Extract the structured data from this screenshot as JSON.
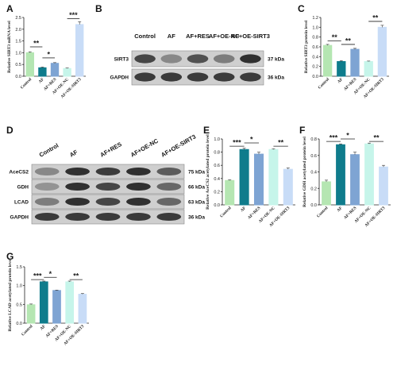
{
  "panel_labels": {
    "A": "A",
    "B": "B",
    "C": "C",
    "D": "D",
    "E": "E",
    "F": "F",
    "G": "G"
  },
  "blot_b": {
    "lanes": [
      "Control",
      "AF",
      "AF+RES",
      "AF+OE-NC",
      "AF+OE-SIRT3"
    ],
    "rows": [
      {
        "name": "SIRT3",
        "kda": "37 kDa",
        "intensity": [
          0.75,
          0.45,
          0.7,
          0.5,
          0.85
        ]
      },
      {
        "name": "GAPDH",
        "kda": "36 kDa",
        "intensity": [
          0.8,
          0.8,
          0.8,
          0.8,
          0.8
        ]
      }
    ]
  },
  "blot_d": {
    "lanes": [
      "Control",
      "AF",
      "AF+RES",
      "AF+OE-NC",
      "AF+OE-SIRT3"
    ],
    "rows": [
      {
        "name": "AceCS2",
        "kda": "75 kDa",
        "intensity": [
          0.45,
          0.85,
          0.8,
          0.85,
          0.65
        ]
      },
      {
        "name": "GDH",
        "kda": "66 kDa",
        "intensity": [
          0.4,
          0.85,
          0.75,
          0.85,
          0.6
        ]
      },
      {
        "name": "LCAD",
        "kda": "63 kDa",
        "intensity": [
          0.5,
          0.85,
          0.75,
          0.85,
          0.6
        ]
      },
      {
        "name": "GAPDH",
        "kda": "36 kDa",
        "intensity": [
          0.8,
          0.8,
          0.8,
          0.8,
          0.8
        ]
      }
    ]
  },
  "chart_data": [
    {
      "id": "A",
      "type": "bar",
      "categories": [
        "Control",
        "AF",
        "AF+RES",
        "AF+OE-NC",
        "AF+OE-SIRT3"
      ],
      "values": [
        1.0,
        0.36,
        0.55,
        0.33,
        2.2
      ],
      "errors": [
        0.04,
        0.03,
        0.03,
        0.02,
        0.12
      ],
      "colors": [
        "#b5e6b2",
        "#0f7c8c",
        "#7ea4d3",
        "#c6f5ea",
        "#c8dcf7"
      ],
      "ylabel": "Relative SIRT3 mRNA level",
      "ylim": [
        0,
        2.5
      ],
      "yticks": [
        "0.0",
        "0.5",
        "1.0",
        "1.5",
        "2.0",
        "2.5"
      ],
      "sig": [
        {
          "from": 0,
          "to": 1,
          "label": "**",
          "y": 1.25
        },
        {
          "from": 1,
          "to": 2,
          "label": "*",
          "y": 0.78
        },
        {
          "from": 3,
          "to": 4,
          "label": "***",
          "y": 2.45
        }
      ]
    },
    {
      "id": "C",
      "type": "bar",
      "categories": [
        "Control",
        "AF",
        "AF+RES",
        "AF+OE-NC",
        "AF+OE-SIRT3"
      ],
      "values": [
        0.63,
        0.3,
        0.55,
        0.3,
        1.0
      ],
      "errors": [
        0.02,
        0.02,
        0.02,
        0.01,
        0.04
      ],
      "colors": [
        "#b5e6b2",
        "#0f7c8c",
        "#7ea4d3",
        "#c6f5ea",
        "#c8dcf7"
      ],
      "ylabel": "Relative SIRT3 protein level",
      "ylim": [
        0,
        1.2
      ],
      "yticks": [
        "0.0",
        "0.2",
        "0.4",
        "0.6",
        "0.8",
        "1.0",
        "1.2"
      ],
      "sig": [
        {
          "from": 0,
          "to": 1,
          "label": "**",
          "y": 0.72
        },
        {
          "from": 1,
          "to": 2,
          "label": "**",
          "y": 0.65
        },
        {
          "from": 3,
          "to": 4,
          "label": "**",
          "y": 1.12
        }
      ]
    },
    {
      "id": "E",
      "type": "bar",
      "categories": [
        "Control",
        "AF",
        "AF+RES",
        "AF+OE-NC",
        "AF+OE-SIRT3"
      ],
      "values": [
        0.37,
        0.84,
        0.77,
        0.84,
        0.54
      ],
      "errors": [
        0.01,
        0.02,
        0.03,
        0.01,
        0.02
      ],
      "colors": [
        "#b5e6b2",
        "#0f7c8c",
        "#7ea4d3",
        "#c6f5ea",
        "#c8dcf7"
      ],
      "ylabel": "Relative AceCS2 acetylated protein level",
      "ylim": [
        0,
        1.0
      ],
      "yticks": [
        "0.0",
        "0.2",
        "0.4",
        "0.6",
        "0.8",
        "1.0"
      ],
      "sig": [
        {
          "from": 0,
          "to": 1,
          "label": "***",
          "y": 0.89
        },
        {
          "from": 1,
          "to": 2,
          "label": "*",
          "y": 0.94
        },
        {
          "from": 3,
          "to": 4,
          "label": "**",
          "y": 0.89
        }
      ]
    },
    {
      "id": "F",
      "type": "bar",
      "categories": [
        "Control",
        "AF",
        "AF+RES",
        "AF+OE-NC",
        "AF+OE-SIRT3"
      ],
      "values": [
        0.28,
        0.73,
        0.61,
        0.74,
        0.46
      ],
      "errors": [
        0.02,
        0.01,
        0.03,
        0.01,
        0.02
      ],
      "colors": [
        "#b5e6b2",
        "#0f7c8c",
        "#7ea4d3",
        "#c6f5ea",
        "#c8dcf7"
      ],
      "ylabel": "Relative GDH acetylated protein level",
      "ylim": [
        0,
        0.8
      ],
      "yticks": [
        "0.0",
        "0.2",
        "0.4",
        "0.6",
        "0.8"
      ],
      "sig": [
        {
          "from": 0,
          "to": 1,
          "label": "***",
          "y": 0.77
        },
        {
          "from": 1,
          "to": 2,
          "label": "*",
          "y": 0.8
        },
        {
          "from": 3,
          "to": 4,
          "label": "**",
          "y": 0.77
        }
      ]
    },
    {
      "id": "G",
      "type": "bar",
      "categories": [
        "Control",
        "AF",
        "AF+RES",
        "AF+OE-NC",
        "AF+OE-SIRT3"
      ],
      "values": [
        0.49,
        1.1,
        0.87,
        1.1,
        0.77
      ],
      "errors": [
        0.02,
        0.02,
        0.01,
        0.02,
        0.02
      ],
      "colors": [
        "#b5e6b2",
        "#0f7c8c",
        "#7ea4d3",
        "#c6f5ea",
        "#c8dcf7"
      ],
      "ylabel": "Relative LCAD acetylated protein level",
      "ylim": [
        0,
        1.5
      ],
      "yticks": [
        "0.0",
        "0.5",
        "1.0",
        "1.5"
      ],
      "sig": [
        {
          "from": 0,
          "to": 1,
          "label": "***",
          "y": 1.16
        },
        {
          "from": 1,
          "to": 2,
          "label": "*",
          "y": 1.22
        },
        {
          "from": 3,
          "to": 4,
          "label": "**",
          "y": 1.16
        }
      ]
    }
  ]
}
